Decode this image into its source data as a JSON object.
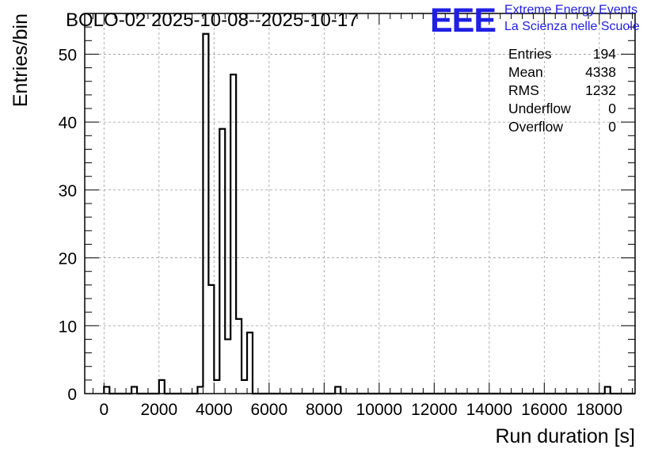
{
  "chart_data": {
    "type": "bar",
    "title": "BOLO-02 2025-10-08--2025-10-17",
    "xlabel": "Run duration [s]",
    "ylabel": "Entries/bin",
    "xlim": [
      -700,
      19300
    ],
    "ylim": [
      0,
      56
    ],
    "xticks": [
      0,
      2000,
      4000,
      6000,
      8000,
      10000,
      12000,
      14000,
      16000,
      18000
    ],
    "xtick_labels": [
      "0",
      "2000",
      "4000",
      "6000",
      "8000",
      "10000",
      "12000",
      "14000",
      "16000",
      "18000"
    ],
    "yticks": [
      0,
      10,
      20,
      30,
      40,
      50
    ],
    "ytick_labels": [
      "0",
      "10",
      "20",
      "30",
      "40",
      "50"
    ],
    "grid": true,
    "histogram": {
      "bin_start": 0,
      "bin_width": 200,
      "bins": [
        {
          "bin": 0,
          "count": 1
        },
        {
          "bin": 5,
          "count": 1
        },
        {
          "bin": 10,
          "count": 2
        },
        {
          "bin": 17,
          "count": 1
        },
        {
          "bin": 18,
          "count": 53
        },
        {
          "bin": 19,
          "count": 16
        },
        {
          "bin": 20,
          "count": 2
        },
        {
          "bin": 21,
          "count": 39
        },
        {
          "bin": 22,
          "count": 8
        },
        {
          "bin": 23,
          "count": 47
        },
        {
          "bin": 24,
          "count": 11
        },
        {
          "bin": 25,
          "count": 2
        },
        {
          "bin": 26,
          "count": 9
        },
        {
          "bin": 42,
          "count": 1
        },
        {
          "bin": 91,
          "count": 1
        }
      ]
    },
    "stats": [
      {
        "label": "Entries",
        "value": "194"
      },
      {
        "label": "Mean",
        "value": "4338"
      },
      {
        "label": "RMS",
        "value": "1232"
      },
      {
        "label": "Underflow",
        "value": "0"
      },
      {
        "label": "Overflow",
        "value": "0"
      }
    ]
  },
  "logo": {
    "mark": "EEE",
    "line1": "Extreme Energy Events",
    "line2": "La Scienza nelle Scuole",
    "color": "#1f1fe6"
  }
}
